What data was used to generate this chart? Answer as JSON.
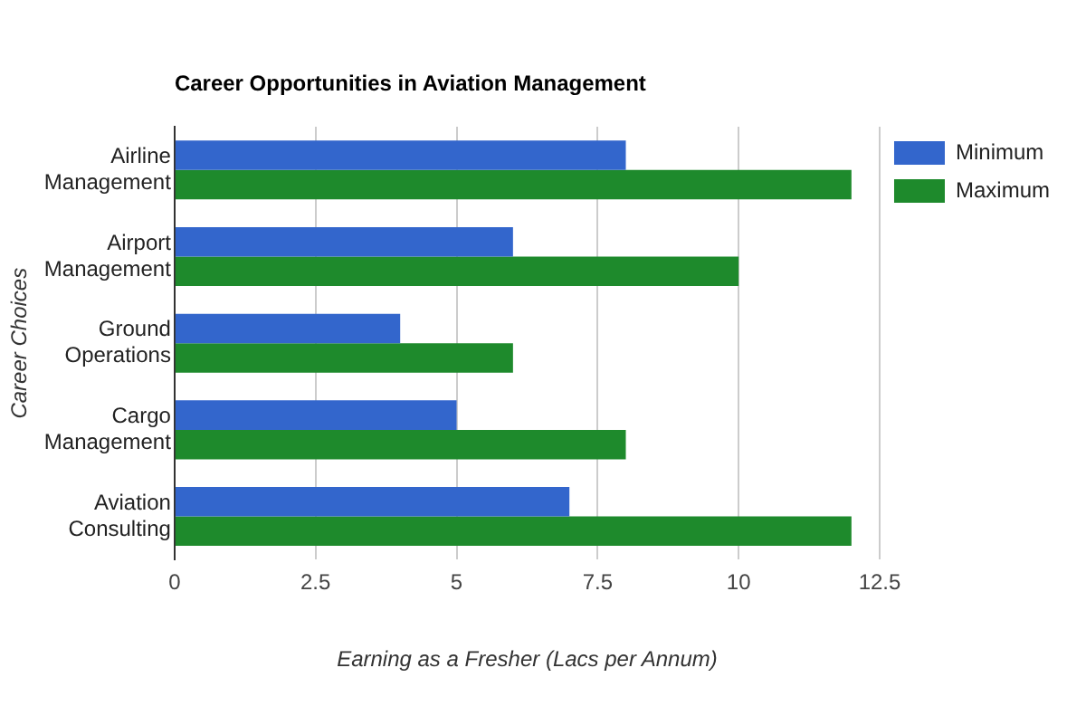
{
  "chart_data": {
    "type": "bar",
    "orientation": "horizontal",
    "title": "Career Opportunities in Aviation Management",
    "xlabel": "Earning as a Fresher (Lacs per Annum)",
    "ylabel": "Career Choices",
    "categories": [
      "Airline Management",
      "Airport Management",
      "Ground Operations",
      "Cargo Management",
      "Aviation Consulting"
    ],
    "series": [
      {
        "name": "Minimum",
        "color": "#3366cc",
        "values": [
          8,
          6,
          4,
          5,
          7
        ]
      },
      {
        "name": "Maximum",
        "color": "#1e8a2c",
        "values": [
          12,
          10,
          6,
          8,
          12
        ]
      }
    ],
    "xlim": [
      0,
      12.5
    ],
    "xticks": [
      0,
      2.5,
      5,
      7.5,
      10,
      12.5
    ],
    "grid": "x",
    "legend": "right"
  }
}
